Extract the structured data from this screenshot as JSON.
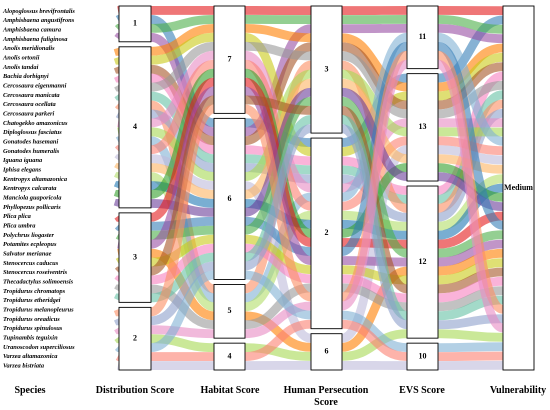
{
  "axes": [
    {
      "key": "species",
      "title_lines": [
        "Species"
      ]
    },
    {
      "key": "distribution",
      "title_lines": [
        "Distribution Score"
      ]
    },
    {
      "key": "habitat",
      "title_lines": [
        "Habitat Score"
      ]
    },
    {
      "key": "persecution",
      "title_lines": [
        "Human Persecution",
        "Score"
      ]
    },
    {
      "key": "evs",
      "title_lines": [
        "EVS Score"
      ]
    },
    {
      "key": "vulnerability",
      "title_lines": [
        "Vulnerability"
      ]
    }
  ],
  "categories": {
    "distribution": [
      "1",
      "4",
      "3",
      "2"
    ],
    "habitat": [
      "7",
      "6",
      "5",
      "4"
    ],
    "persecution": [
      "3",
      "2",
      "6"
    ],
    "evs": [
      "11",
      "13",
      "12",
      "10"
    ],
    "vulnerability": [
      "Medium"
    ]
  },
  "species": [
    {
      "name": "Alopoglossus brevifrontalis",
      "distribution": "1",
      "habitat": "7",
      "persecution": "3",
      "evs": "11"
    },
    {
      "name": "Amphisbaena angustifrons",
      "distribution": "1",
      "habitat": "6",
      "persecution": "2",
      "evs": "13"
    },
    {
      "name": "Amphisbaena camura",
      "distribution": "1",
      "habitat": "7",
      "persecution": "3",
      "evs": "11"
    },
    {
      "name": "Amphisbaena fuliginosa",
      "distribution": "1",
      "habitat": "6",
      "persecution": "3",
      "evs": "11"
    },
    {
      "name": "Anolis meridionalis",
      "distribution": "4",
      "habitat": "7",
      "persecution": "3",
      "evs": "13"
    },
    {
      "name": "Anolis ortonii",
      "distribution": "4",
      "habitat": "7",
      "persecution": "2",
      "evs": "13"
    },
    {
      "name": "Anolis tandai",
      "distribution": "4",
      "habitat": "6",
      "persecution": "3",
      "evs": "13"
    },
    {
      "name": "Bachia dorbignyi",
      "distribution": "4",
      "habitat": "6",
      "persecution": "2",
      "evs": "12"
    },
    {
      "name": "Cercosaura eigenmanni",
      "distribution": "4",
      "habitat": "7",
      "persecution": "3",
      "evs": "13"
    },
    {
      "name": "Cercosaura manicata",
      "distribution": "4",
      "habitat": "6",
      "persecution": "2",
      "evs": "12"
    },
    {
      "name": "Cercosaura ocellata",
      "distribution": "4",
      "habitat": "5",
      "persecution": "3",
      "evs": "12"
    },
    {
      "name": "Cercosaura parkeri",
      "distribution": "4",
      "habitat": "6",
      "persecution": "2",
      "evs": "12"
    },
    {
      "name": "Chatogekko amazonicus",
      "distribution": "4",
      "habitat": "7",
      "persecution": "2",
      "evs": "13"
    },
    {
      "name": "Diploglossus fasciatus",
      "distribution": "4",
      "habitat": "6",
      "persecution": "3",
      "evs": "13"
    },
    {
      "name": "Gonatodes hasemani",
      "distribution": "4",
      "habitat": "5",
      "persecution": "2",
      "evs": "11"
    },
    {
      "name": "Gonatodes humeralis",
      "distribution": "4",
      "habitat": "7",
      "persecution": "2",
      "evs": "13"
    },
    {
      "name": "Iguana iguana",
      "distribution": "4",
      "habitat": "6",
      "persecution": "6",
      "evs": "13"
    },
    {
      "name": "Iphisa elegans",
      "distribution": "4",
      "habitat": "6",
      "persecution": "3",
      "evs": "13"
    },
    {
      "name": "Kentropyx altamazonica",
      "distribution": "4",
      "habitat": "5",
      "persecution": "2",
      "evs": "12"
    },
    {
      "name": "Kentropyx calcarata",
      "distribution": "4",
      "habitat": "6",
      "persecution": "2",
      "evs": "12"
    },
    {
      "name": "Manciola guaporicola",
      "distribution": "4",
      "habitat": "7",
      "persecution": "2",
      "evs": "13"
    },
    {
      "name": "Phyllopezus pollicaris",
      "distribution": "4",
      "habitat": "6",
      "persecution": "3",
      "evs": "13"
    },
    {
      "name": "Plica plica",
      "distribution": "3",
      "habitat": "7",
      "persecution": "2",
      "evs": "12"
    },
    {
      "name": "Plica umbra",
      "distribution": "3",
      "habitat": "6",
      "persecution": "2",
      "evs": "11"
    },
    {
      "name": "Polychrus liogaster",
      "distribution": "3",
      "habitat": "6",
      "persecution": "3",
      "evs": "12"
    },
    {
      "name": "Potamites ecpleopus",
      "distribution": "3",
      "habitat": "7",
      "persecution": "2",
      "evs": "12"
    },
    {
      "name": "Salvator merianae",
      "distribution": "3",
      "habitat": "5",
      "persecution": "6",
      "evs": "12"
    },
    {
      "name": "Stenocercus caducus",
      "distribution": "3",
      "habitat": "6",
      "persecution": "2",
      "evs": "12"
    },
    {
      "name": "Stenocercus roseiventris",
      "distribution": "3",
      "habitat": "7",
      "persecution": "3",
      "evs": "12"
    },
    {
      "name": "Thecadactylus solimoensis",
      "distribution": "3",
      "habitat": "6",
      "persecution": "2",
      "evs": "12"
    },
    {
      "name": "Tropidurus chromatops",
      "distribution": "3",
      "habitat": "5",
      "persecution": "2",
      "evs": "12"
    },
    {
      "name": "Tropidurus etheridgei",
      "distribution": "3",
      "habitat": "6",
      "persecution": "3",
      "evs": "12"
    },
    {
      "name": "Tropidurus melanopleurus",
      "distribution": "2",
      "habitat": "7",
      "persecution": "2",
      "evs": "11"
    },
    {
      "name": "Tropidurus oreadicus",
      "distribution": "2",
      "habitat": "6",
      "persecution": "3",
      "evs": "12"
    },
    {
      "name": "Tropidurus spinulosus",
      "distribution": "2",
      "habitat": "5",
      "persecution": "2",
      "evs": "11"
    },
    {
      "name": "Tupinambis teguixin",
      "distribution": "2",
      "habitat": "4",
      "persecution": "6",
      "evs": "12"
    },
    {
      "name": "Uranoscodon superciliosus",
      "distribution": "2",
      "habitat": "6",
      "persecution": "2",
      "evs": "10"
    },
    {
      "name": "Varzea altamazonica",
      "distribution": "2",
      "habitat": "4",
      "persecution": "2",
      "evs": "10"
    },
    {
      "name": "Varzea bistriata",
      "distribution": "2",
      "habitat": "4",
      "persecution": "6",
      "evs": "10"
    }
  ],
  "palette": [
    "#e41a1c",
    "#377eb8",
    "#4daf4a",
    "#984ea3",
    "#ff7f00",
    "#c9c917",
    "#a65628",
    "#f781bf",
    "#999999",
    "#66c2a5",
    "#fc8d62",
    "#8da0cb",
    "#e78ac3",
    "#a6d854",
    "#80b1d3",
    "#fb8072",
    "#bebada",
    "#fdb462",
    "#b3de69",
    "#1f78b4",
    "#33a02c",
    "#6a3d9a"
  ]
}
